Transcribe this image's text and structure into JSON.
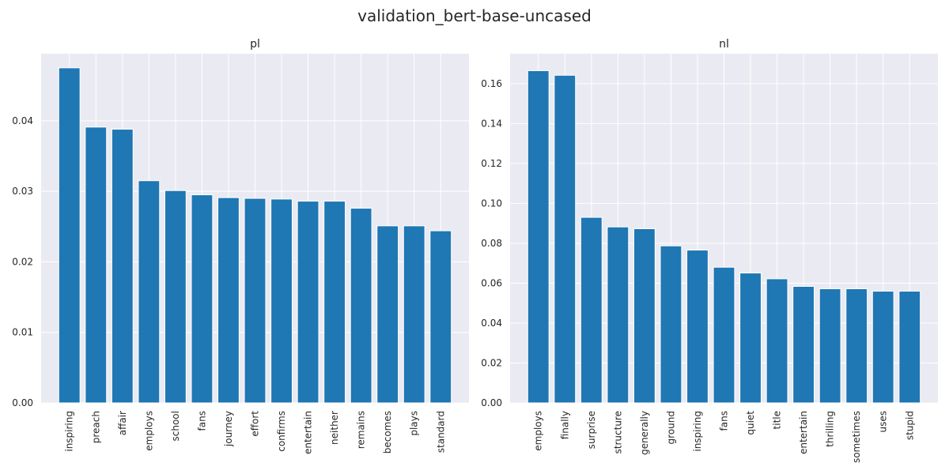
{
  "suptitle": "validation_bert-base-uncased",
  "chart_data": [
    {
      "type": "bar",
      "title": "pl",
      "xlabel": "",
      "ylabel": "",
      "ylim": [
        0,
        0.0495
      ],
      "yticks": [
        0.0,
        0.01,
        0.02,
        0.03,
        0.04
      ],
      "ytick_labels": [
        "0.00",
        "0.01",
        "0.02",
        "0.03",
        "0.04"
      ],
      "grid": true,
      "bar_color": "#1f77b4",
      "background_color": "#eaeaf2",
      "categories": [
        "inspiring",
        "preach",
        "affair",
        "employs",
        "school",
        "fans",
        "journey",
        "effort",
        "confirms",
        "entertain",
        "neither",
        "remains",
        "becomes",
        "plays",
        "standard"
      ],
      "values": [
        0.0475,
        0.0391,
        0.0388,
        0.0315,
        0.0301,
        0.0295,
        0.0291,
        0.029,
        0.0289,
        0.0286,
        0.0286,
        0.0276,
        0.0251,
        0.0251,
        0.0244
      ]
    },
    {
      "type": "bar",
      "title": "nl",
      "xlabel": "",
      "ylabel": "",
      "ylim": [
        0,
        0.175
      ],
      "yticks": [
        0.0,
        0.02,
        0.04,
        0.06,
        0.08,
        0.1,
        0.12,
        0.14,
        0.16
      ],
      "ytick_labels": [
        "0.00",
        "0.02",
        "0.04",
        "0.06",
        "0.08",
        "0.10",
        "0.12",
        "0.14",
        "0.16"
      ],
      "grid": true,
      "bar_color": "#1f77b4",
      "background_color": "#eaeaf2",
      "categories": [
        "employs",
        "finally",
        "surprise",
        "structure",
        "generally",
        "ground",
        "inspiring",
        "fans",
        "quiet",
        "title",
        "entertain",
        "thrilling",
        "sometimes",
        "uses",
        "stupid"
      ],
      "values": [
        0.1665,
        0.1642,
        0.093,
        0.0882,
        0.0873,
        0.0787,
        0.0766,
        0.068,
        0.0651,
        0.0622,
        0.0584,
        0.0572,
        0.0572,
        0.056,
        0.056
      ]
    }
  ]
}
